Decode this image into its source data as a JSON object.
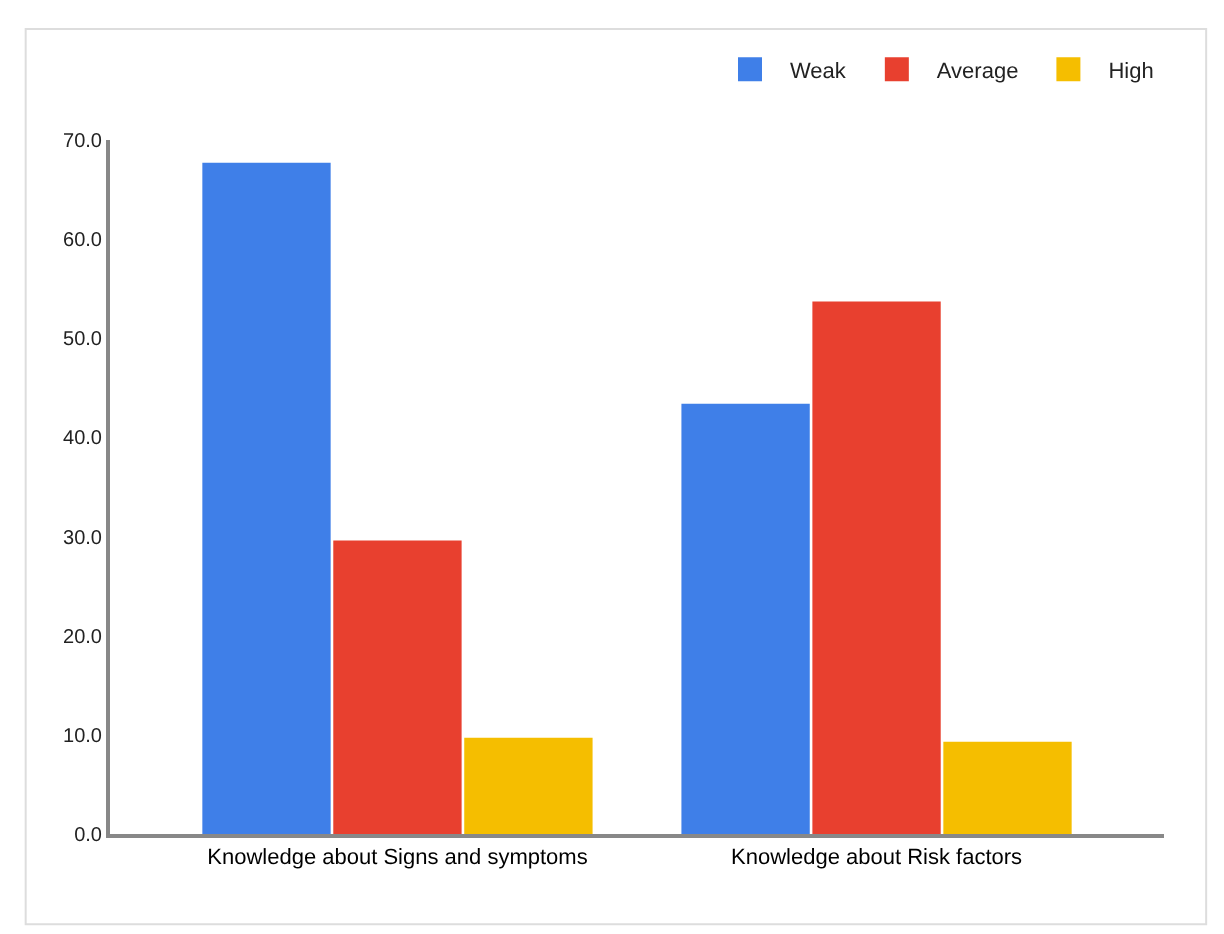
{
  "chart_data": {
    "type": "bar",
    "categories": [
      "Knowledge about Signs and symptoms",
      "Knowledge about Risk factors"
    ],
    "series": [
      {
        "name": "Weak",
        "color": "#3f7fe8",
        "values": [
          67.7,
          43.4
        ]
      },
      {
        "name": "Average",
        "color": "#e8402f",
        "values": [
          29.6,
          53.7
        ]
      },
      {
        "name": "High",
        "color": "#f5be00",
        "values": [
          9.7,
          9.3
        ]
      }
    ],
    "ylim": [
      0,
      70
    ],
    "yticks": [
      {
        "value": 0,
        "label": "0.0"
      },
      {
        "value": 10,
        "label": "10.0"
      },
      {
        "value": 20,
        "label": "20.0"
      },
      {
        "value": 30,
        "label": "30.0"
      },
      {
        "value": 40,
        "label": "40.0"
      },
      {
        "value": 50,
        "label": "50.0"
      },
      {
        "value": 60,
        "label": "60.0"
      },
      {
        "value": 70,
        "label": "70.0"
      }
    ],
    "legend": "top right"
  }
}
